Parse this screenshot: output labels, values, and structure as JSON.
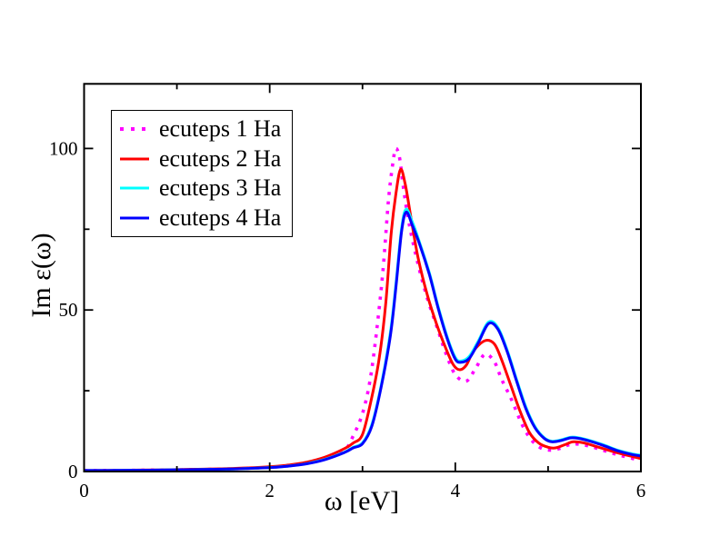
{
  "figure": {
    "background": "#ffffff",
    "frame_color": "#000000"
  },
  "chart_data": {
    "type": "line",
    "title": "",
    "xlabel": "ω [eV]",
    "ylabel": "Im ε(ω)",
    "xlim": [
      0,
      6
    ],
    "ylim": [
      0,
      120
    ],
    "x_major_ticks": [
      0,
      2,
      4,
      6
    ],
    "x_minor_ticks": [
      1,
      3,
      5
    ],
    "y_major_ticks": [
      0,
      50,
      100
    ],
    "y_minor_ticks": [
      25,
      75
    ],
    "x_tick_labels": [
      "0",
      "2",
      "4",
      "6"
    ],
    "y_tick_labels": [
      "0",
      "50",
      "100"
    ],
    "grid": false,
    "legend_position": "upper-left",
    "series": [
      {
        "name": "ecuteps 1 Ha",
        "color": "#ff00ff",
        "style": "dotted",
        "points": [
          [
            0,
            0.3
          ],
          [
            0.4,
            0.35
          ],
          [
            0.8,
            0.45
          ],
          [
            1.2,
            0.6
          ],
          [
            1.6,
            0.85
          ],
          [
            2.0,
            1.3
          ],
          [
            2.2,
            1.8
          ],
          [
            2.4,
            2.6
          ],
          [
            2.6,
            4.0
          ],
          [
            2.8,
            6.3
          ],
          [
            2.9,
            11
          ],
          [
            3.0,
            18
          ],
          [
            3.08,
            28
          ],
          [
            3.15,
            43
          ],
          [
            3.22,
            62
          ],
          [
            3.28,
            84
          ],
          [
            3.33,
            96
          ],
          [
            3.36,
            100
          ],
          [
            3.4,
            97
          ],
          [
            3.44,
            88
          ],
          [
            3.5,
            77
          ],
          [
            3.6,
            64
          ],
          [
            3.7,
            53.5
          ],
          [
            3.8,
            45
          ],
          [
            3.9,
            36.5
          ],
          [
            4.0,
            30
          ],
          [
            4.12,
            28
          ],
          [
            4.22,
            32
          ],
          [
            4.32,
            36.3
          ],
          [
            4.42,
            34
          ],
          [
            4.5,
            28.5
          ],
          [
            4.61,
            22
          ],
          [
            4.72,
            14.5
          ],
          [
            4.82,
            9.8
          ],
          [
            4.92,
            7.3
          ],
          [
            5.02,
            6.6
          ],
          [
            5.12,
            7.1
          ],
          [
            5.22,
            8.2
          ],
          [
            5.32,
            8.5
          ],
          [
            5.45,
            7.8
          ],
          [
            5.6,
            6.5
          ],
          [
            5.75,
            5.2
          ],
          [
            5.9,
            4.1
          ],
          [
            6.0,
            3.4
          ]
        ]
      },
      {
        "name": "ecuteps 2 Ha",
        "color": "#ff0000",
        "style": "solid",
        "points": [
          [
            0,
            0.3
          ],
          [
            0.4,
            0.4
          ],
          [
            0.8,
            0.5
          ],
          [
            1.2,
            0.7
          ],
          [
            1.6,
            0.95
          ],
          [
            2.0,
            1.45
          ],
          [
            2.2,
            2.0
          ],
          [
            2.4,
            2.9
          ],
          [
            2.6,
            4.5
          ],
          [
            2.8,
            7.0
          ],
          [
            2.9,
            8.8
          ],
          [
            3.0,
            11.5
          ],
          [
            3.1,
            23
          ],
          [
            3.18,
            35
          ],
          [
            3.25,
            52
          ],
          [
            3.31,
            74
          ],
          [
            3.36,
            86
          ],
          [
            3.41,
            93.5
          ],
          [
            3.46,
            89
          ],
          [
            3.52,
            79
          ],
          [
            3.6,
            66
          ],
          [
            3.7,
            54.5
          ],
          [
            3.8,
            45.5
          ],
          [
            3.9,
            38
          ],
          [
            3.98,
            33
          ],
          [
            4.05,
            31.5
          ],
          [
            4.12,
            33
          ],
          [
            4.2,
            37.5
          ],
          [
            4.32,
            40.5
          ],
          [
            4.42,
            39.5
          ],
          [
            4.5,
            34.5
          ],
          [
            4.6,
            26.5
          ],
          [
            4.7,
            18.5
          ],
          [
            4.8,
            12
          ],
          [
            4.9,
            8.8
          ],
          [
            5.0,
            7.5
          ],
          [
            5.08,
            7.3
          ],
          [
            5.18,
            8.3
          ],
          [
            5.27,
            9.2
          ],
          [
            5.38,
            8.9
          ],
          [
            5.5,
            7.9
          ],
          [
            5.65,
            6.6
          ],
          [
            5.8,
            5.4
          ],
          [
            5.9,
            4.7
          ],
          [
            6.0,
            4.0
          ]
        ]
      },
      {
        "name": "ecuteps 3 Ha",
        "color": "#00ffff",
        "style": "solid",
        "points": [
          [
            0,
            0.3
          ],
          [
            0.4,
            0.35
          ],
          [
            0.8,
            0.45
          ],
          [
            1.2,
            0.6
          ],
          [
            1.6,
            0.8
          ],
          [
            2.0,
            1.25
          ],
          [
            2.2,
            1.7
          ],
          [
            2.4,
            2.45
          ],
          [
            2.6,
            3.8
          ],
          [
            2.8,
            5.9
          ],
          [
            2.9,
            7.5
          ],
          [
            3.0,
            8.9
          ],
          [
            3.1,
            14.5
          ],
          [
            3.2,
            26.5
          ],
          [
            3.3,
            43
          ],
          [
            3.36,
            58
          ],
          [
            3.42,
            75
          ],
          [
            3.47,
            81.2
          ],
          [
            3.54,
            77
          ],
          [
            3.62,
            70.5
          ],
          [
            3.72,
            61.5
          ],
          [
            3.82,
            50.5
          ],
          [
            3.92,
            41
          ],
          [
            4.0,
            35.3
          ],
          [
            4.06,
            34.2
          ],
          [
            4.15,
            35.6
          ],
          [
            4.25,
            40.5
          ],
          [
            4.36,
            46.3
          ],
          [
            4.46,
            44.5
          ],
          [
            4.56,
            37.5
          ],
          [
            4.66,
            28.5
          ],
          [
            4.76,
            20
          ],
          [
            4.86,
            13.8
          ],
          [
            4.96,
            10.4
          ],
          [
            5.04,
            9.4
          ],
          [
            5.14,
            9.8
          ],
          [
            5.24,
            10.6
          ],
          [
            5.32,
            10.5
          ],
          [
            5.45,
            9.6
          ],
          [
            5.6,
            8.2
          ],
          [
            5.75,
            6.6
          ],
          [
            5.9,
            5.5
          ],
          [
            6.0,
            5.0
          ]
        ]
      },
      {
        "name": "ecuteps 4 Ha",
        "color": "#0000ff",
        "style": "solid",
        "points": [
          [
            0,
            0.3
          ],
          [
            0.4,
            0.35
          ],
          [
            0.8,
            0.45
          ],
          [
            1.2,
            0.6
          ],
          [
            1.6,
            0.8
          ],
          [
            2.0,
            1.2
          ],
          [
            2.2,
            1.65
          ],
          [
            2.4,
            2.4
          ],
          [
            2.6,
            3.7
          ],
          [
            2.8,
            5.8
          ],
          [
            2.9,
            7.3
          ],
          [
            3.0,
            8.6
          ],
          [
            3.1,
            14
          ],
          [
            3.2,
            26
          ],
          [
            3.3,
            42
          ],
          [
            3.36,
            57
          ],
          [
            3.42,
            74
          ],
          [
            3.47,
            80.3
          ],
          [
            3.54,
            76
          ],
          [
            3.62,
            70
          ],
          [
            3.72,
            61
          ],
          [
            3.82,
            50
          ],
          [
            3.92,
            40.5
          ],
          [
            4.0,
            34.8
          ],
          [
            4.06,
            33.8
          ],
          [
            4.15,
            35
          ],
          [
            4.25,
            40
          ],
          [
            4.36,
            45.8
          ],
          [
            4.46,
            44
          ],
          [
            4.56,
            37
          ],
          [
            4.66,
            28
          ],
          [
            4.76,
            19.5
          ],
          [
            4.86,
            13.5
          ],
          [
            4.96,
            10.2
          ],
          [
            5.04,
            9.2
          ],
          [
            5.14,
            9.6
          ],
          [
            5.24,
            10.4
          ],
          [
            5.32,
            10.3
          ],
          [
            5.45,
            9.4
          ],
          [
            5.6,
            8.0
          ],
          [
            5.75,
            6.4
          ],
          [
            5.9,
            5.3
          ],
          [
            6.0,
            4.8
          ]
        ]
      }
    ]
  }
}
